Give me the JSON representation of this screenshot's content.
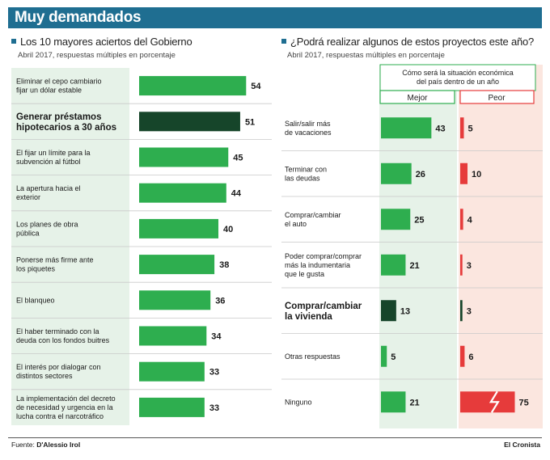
{
  "header": {
    "title": "Muy demandados"
  },
  "left": {
    "title": "Los 10 mayores aciertos del Gobierno",
    "subtitle": "Abril 2017, respuestas múltiples en porcentaje"
  },
  "right": {
    "title": "¿Podrá realizar algunos de estos proyectos este año?",
    "subtitle": "Abril 2017, respuestas múltiples en porcentaje",
    "column_header": "Cómo será la situación económica del país dentro de un año",
    "col_better": "Mejor",
    "col_worse": "Peor"
  },
  "footer": {
    "source_label": "Fuente:",
    "source": "D'Alessio Irol",
    "brand": "El Cronista"
  },
  "colors": {
    "header": "#1f6e91",
    "bar": "#2eae4f",
    "highlight": "#16452a",
    "worse": "#e63b3b",
    "panel_green": "#e6f2e8",
    "panel_red": "#fbe6df"
  },
  "chart_data": [
    {
      "type": "bar",
      "title": "Los 10 mayores aciertos del Gobierno",
      "categories": [
        [
          "Eliminar el cepo cambiario",
          "fijar un dólar estable"
        ],
        [
          "Generar préstamos",
          "hipotecarios a 30 años"
        ],
        [
          "El fijar un límite para la",
          "subvención al fútbol"
        ],
        [
          "La apertura hacia el",
          "exterior"
        ],
        [
          "Los planes de obra",
          "pública"
        ],
        [
          "Ponerse más firme ante",
          "los piquetes"
        ],
        [
          "El blanqueo"
        ],
        [
          "El haber terminado con la",
          "deuda con los fondos buitres"
        ],
        [
          "El interés por dialogar con",
          "distintos sectores"
        ],
        [
          "La implementación del decreto",
          "de necesidad y urgencia en la",
          "lucha contra el narcotráfico"
        ]
      ],
      "values": [
        54,
        51,
        45,
        44,
        40,
        38,
        36,
        34,
        33,
        33
      ],
      "highlight_index": 1
    },
    {
      "type": "bar",
      "title": "¿Podrá realizar algunos de estos proyectos este año?",
      "categories": [
        [
          "Salir/salir más",
          "de vacaciones"
        ],
        [
          "Terminar con",
          "las deudas"
        ],
        [
          "Comprar/cambiar",
          "el auto"
        ],
        [
          "Poder comprar/comprar",
          "más la indumentaria",
          "que le gusta"
        ],
        [
          "Comprar/cambiar",
          "la vivienda"
        ],
        [
          "Otras respuestas"
        ],
        [
          "Ninguno"
        ]
      ],
      "series": [
        {
          "name": "Mejor",
          "values": [
            43,
            26,
            25,
            21,
            13,
            5,
            21
          ]
        },
        {
          "name": "Peor",
          "values": [
            5,
            10,
            4,
            3,
            3,
            6,
            75
          ]
        }
      ],
      "highlight_index": 4
    }
  ]
}
